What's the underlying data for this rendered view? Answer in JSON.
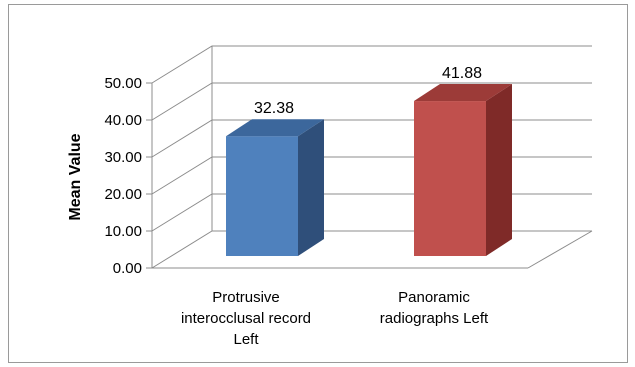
{
  "chart_data": {
    "type": "bar",
    "categories": [
      [
        "Protrusive",
        "interocclusal record",
        "Left"
      ],
      [
        "Panoramic",
        "radiographs Left"
      ]
    ],
    "values": [
      32.38,
      41.88
    ],
    "data_labels": [
      "32.38",
      "41.88"
    ],
    "ylabel": "Mean Value",
    "xlabel": "",
    "title": "",
    "ylim": [
      0,
      50
    ],
    "yticks": [
      "0.00",
      "10.00",
      "20.00",
      "30.00",
      "40.00",
      "50.00"
    ],
    "bar_colors": [
      {
        "front": "#4f81bd",
        "side": "#2f4f7a",
        "top": "#3c679c"
      },
      {
        "front": "#c0504d",
        "side": "#7f2a28",
        "top": "#9c3b38"
      }
    ],
    "grid": true,
    "legend": "none",
    "style": "3d-column"
  }
}
